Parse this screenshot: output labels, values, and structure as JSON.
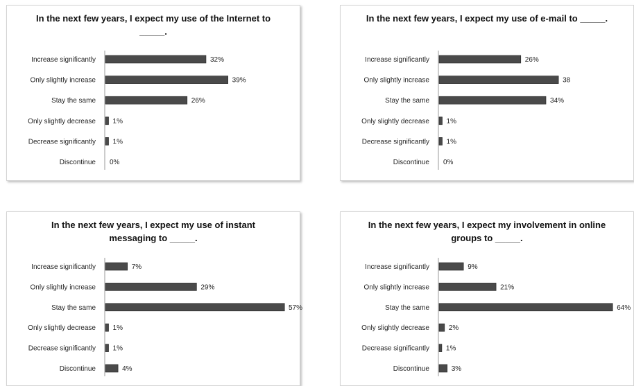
{
  "chart_data": [
    {
      "type": "bar",
      "orientation": "horizontal",
      "title": "In the next few years, I expect my use of the Internet to _____.",
      "categories": [
        "Increase significantly",
        "Only slightly increase",
        "Stay the same",
        "Only slightly decrease",
        "Decrease significantly",
        "Discontinue"
      ],
      "values": [
        32,
        39,
        26,
        1,
        1,
        0
      ],
      "data_labels": [
        "32%",
        "39%",
        "26%",
        "1%",
        "1%",
        "0%"
      ],
      "value_unit": "%",
      "xlim": [
        0,
        70
      ],
      "grid": false,
      "legend": "none",
      "bar_color": "#4a4a4a"
    },
    {
      "type": "bar",
      "orientation": "horizontal",
      "title": "In the next few years, I expect my use of e-mail to _____.",
      "categories": [
        "Increase significantly",
        "Only slightly increase",
        "Stay the same",
        "Only slightly decrease",
        "Decrease significantly",
        "Discontinue"
      ],
      "values": [
        26,
        38,
        34,
        1,
        1,
        0
      ],
      "data_labels": [
        "26%",
        "38",
        "34%",
        "1%",
        "1%",
        "0%"
      ],
      "value_unit": "%",
      "xlim": [
        0,
        70
      ],
      "grid": false,
      "legend": "none",
      "bar_color": "#4a4a4a"
    },
    {
      "type": "bar",
      "orientation": "horizontal",
      "title": "In the next few years, I expect my use of instant messaging to _____.",
      "categories": [
        "Increase significantly",
        "Only slightly increase",
        "Stay the same",
        "Only slightly decrease",
        "Decrease significantly",
        "Discontinue"
      ],
      "values": [
        7,
        29,
        57,
        1,
        1,
        4
      ],
      "data_labels": [
        "7%",
        "29%",
        "57%",
        "1%",
        "1%",
        "4%"
      ],
      "value_unit": "%",
      "xlim": [
        0,
        60
      ],
      "grid": false,
      "legend": "none",
      "bar_color": "#4a4a4a"
    },
    {
      "type": "bar",
      "orientation": "horizontal",
      "title": "In the next few years, I expect my involvement in online groups to _____.",
      "categories": [
        "Increase significantly",
        "Only slightly increase",
        "Stay the same",
        "Only slightly decrease",
        "Decrease significantly",
        "Discontinue"
      ],
      "values": [
        9,
        21,
        64,
        2,
        1,
        3
      ],
      "data_labels": [
        "9%",
        "21%",
        "64%",
        "2%",
        "1%",
        "3%"
      ],
      "value_unit": "%",
      "xlim": [
        0,
        70
      ],
      "grid": false,
      "legend": "none",
      "bar_color": "#4a4a4a"
    }
  ]
}
